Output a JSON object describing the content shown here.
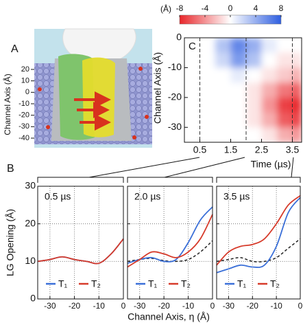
{
  "chart_data": [
    {
      "type": "image",
      "label": "A",
      "ylabel": "Channel Axis (Å)",
      "ylim": [
        -40,
        20
      ],
      "yticks": [
        20,
        10,
        0,
        -10,
        -20,
        -30,
        -40
      ]
    },
    {
      "type": "heatmap",
      "label": "C",
      "ylabel": "Channel Axis (Å)",
      "xlabel": "Time (µs)",
      "colorbar_label": "(Å)",
      "xlim": [
        0,
        3.8
      ],
      "xticks": [
        0.5,
        1.5,
        2.5,
        3.5
      ],
      "ylim": [
        -35,
        0
      ],
      "yticks": [
        0,
        -10,
        -20,
        -30
      ],
      "clim": [
        -8,
        8
      ],
      "cticks": [
        -8,
        -4,
        0,
        4,
        8
      ],
      "colors": [
        "#e8262a",
        "#ffffff",
        "#2f5fe0"
      ],
      "xbins": [
        1.0,
        1.5,
        2.0,
        2.5,
        3.0,
        3.5,
        3.8
      ],
      "ybins": [
        0,
        -5,
        -10,
        -15,
        -20,
        -25,
        -30,
        -35
      ],
      "z": [
        [
          3,
          6,
          4,
          1,
          0,
          0
        ],
        [
          2,
          5,
          3,
          0,
          -1,
          -1
        ],
        [
          0,
          1,
          0,
          -1,
          -2,
          -3
        ],
        [
          0,
          0,
          -1,
          -3,
          -5,
          -6
        ],
        [
          0,
          0,
          -1,
          -4,
          -7,
          -8
        ],
        [
          0,
          0,
          -1,
          -3,
          -6,
          -7
        ],
        [
          0,
          0,
          0,
          -1,
          -3,
          -4
        ]
      ],
      "vlines": [
        0.5,
        2.0,
        3.5
      ]
    },
    {
      "type": "line",
      "label": "B",
      "ylabel": "LG Opening (Å)",
      "xlabel": "Channel Axis, η (Å)",
      "xlim": [
        -35,
        0
      ],
      "xticks": [
        -30,
        -20,
        -10,
        0
      ],
      "ylim": [
        0,
        30
      ],
      "yticks": [
        0,
        10,
        20,
        30
      ],
      "grid": true,
      "x": [
        -35,
        -30,
        -25,
        -20,
        -15,
        -10,
        -5,
        0
      ],
      "panels": [
        {
          "title": "0.5 µs",
          "series": [
            {
              "color": "#222222",
              "dash": true,
              "values": [
                10,
                10.5,
                11.2,
                10.5,
                10,
                9.5,
                12,
                16
              ]
            },
            {
              "name": "T₁",
              "color": "#3a6fd8",
              "values": [
                10,
                10.5,
                11.2,
                10.5,
                10,
                9.5,
                12,
                16
              ]
            },
            {
              "name": "T₂",
              "color": "#d63a2a",
              "values": [
                10,
                10.5,
                11.2,
                10.5,
                10,
                9.5,
                12,
                16
              ]
            }
          ]
        },
        {
          "title": "2.0 µs",
          "series": [
            {
              "color": "#222222",
              "dash": true,
              "values": [
                10,
                10.5,
                10.8,
                10.2,
                10,
                10.5,
                12.5,
                15.5
              ]
            },
            {
              "name": "T₁",
              "color": "#3a6fd8",
              "values": [
                9.5,
                10.5,
                11,
                10,
                10.5,
                15,
                21,
                24.5
              ]
            },
            {
              "name": "T₂",
              "color": "#d63a2a",
              "values": [
                8.5,
                10.5,
                12.5,
                12,
                11,
                12.5,
                16,
                22.5
              ]
            }
          ]
        },
        {
          "title": "3.5 µs",
          "series": [
            {
              "color": "#222222",
              "dash": true,
              "values": [
                10,
                10.5,
                11,
                10,
                10,
                11,
                13.5,
                16
              ]
            },
            {
              "name": "T₁",
              "color": "#3a6fd8",
              "values": [
                7,
                8,
                9,
                8.5,
                9,
                14,
                23,
                27
              ]
            },
            {
              "name": "T₂",
              "color": "#d63a2a",
              "values": [
                9,
                12.5,
                14,
                14.5,
                16,
                20,
                25,
                27.5
              ]
            }
          ]
        }
      ]
    }
  ]
}
